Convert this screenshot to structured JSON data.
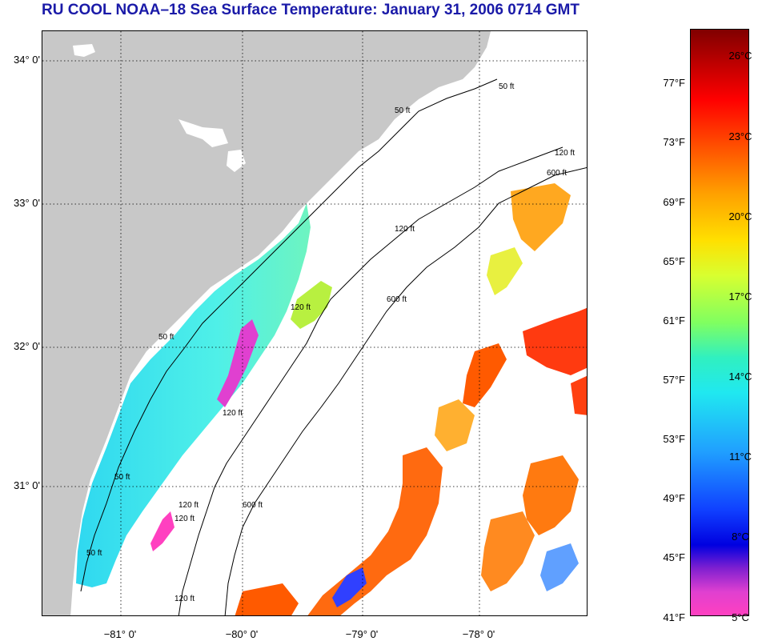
{
  "title": "RU COOL  NOAA–18  Sea Surface Temperature:  January 31, 2006 0714 GMT",
  "map": {
    "latitudes": [
      "34° 0'",
      "33° 0'",
      "32° 0'",
      "31° 0'"
    ],
    "longitudes": [
      "−81° 0'",
      "−80° 0'",
      "−79° 0'",
      "−78° 0'"
    ],
    "contour_labels": [
      "50 ft",
      "50 ft",
      "120 ft",
      "600 ft",
      "120 ft",
      "600 ft",
      "120 ft",
      "50 ft",
      "120 ft",
      "600 ft",
      "50 ft",
      "120 ft",
      "50 ft",
      "120 ft",
      "120 ft"
    ],
    "colors": {
      "land": "#c8c8c8",
      "cloud": "#ffffff",
      "water_shelf": "#3ee8f0",
      "water_warm": "#ff5a00"
    }
  },
  "colorbar": {
    "fahrenheit_ticks": [
      "77°F",
      "73°F",
      "69°F",
      "65°F",
      "61°F",
      "57°F",
      "53°F",
      "49°F",
      "45°F",
      "41°F"
    ],
    "celsius_ticks": [
      "26°C",
      "23°C",
      "20°C",
      "17°C",
      "14°C",
      "11°C",
      "8°C",
      "5°C"
    ],
    "range_celsius": [
      5,
      27
    ]
  }
}
